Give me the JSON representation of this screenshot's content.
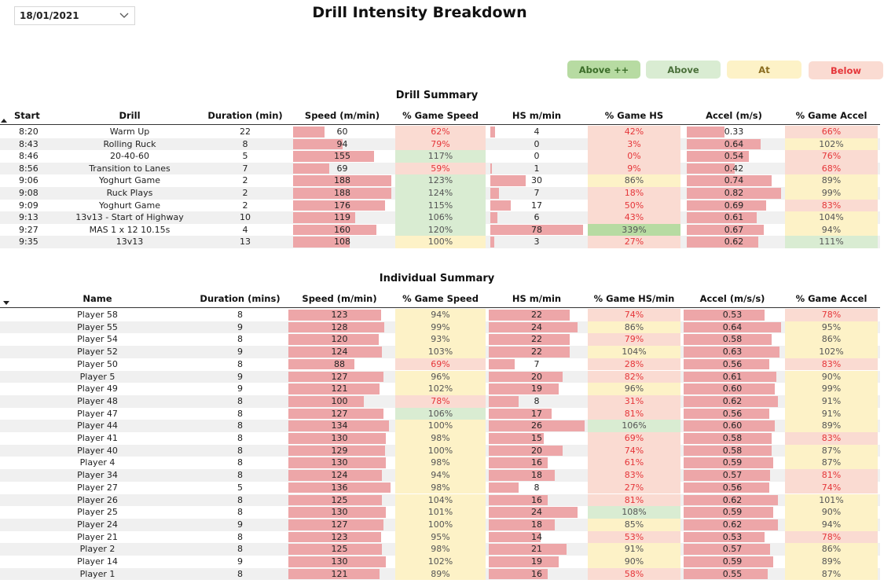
{
  "filter": {
    "date": "18/01/2021"
  },
  "title": "Drill Intensity Breakdown",
  "legend": [
    {
      "label": "Above ++",
      "bg": "#b7dba2",
      "color": "#3c6e2a"
    },
    {
      "label": "Above",
      "bg": "#d9ecd2",
      "color": "#4a6f3a"
    },
    {
      "label": "At",
      "bg": "#fdf2c7",
      "color": "#8b6d1f"
    },
    {
      "label": "Below",
      "bg": "#fadbd2",
      "color": "#e5363a"
    }
  ],
  "colors": {
    "bar": "#eda6a8",
    "band_below": "#fadbd2",
    "band_at": "#fdf2c7",
    "band_above": "#d9ecd2",
    "band_above_pp": "#b7dba2",
    "text_below": "#e5363a",
    "row_alt": "#f0f0f0"
  },
  "drill_summary": {
    "title": "Drill Summary",
    "headers": [
      "Start",
      "Drill",
      "Duration (min)",
      "Speed (m/min)",
      "% Game Speed",
      "HS m/min",
      "% Game HS",
      "Accel (m/s)",
      "% Game Accel"
    ],
    "rows": [
      [
        "8:20",
        "Warm Up",
        "22",
        "60",
        "62%",
        "4",
        "42%",
        "0.33",
        "66%"
      ],
      [
        "8:43",
        "Rolling Ruck",
        "8",
        "94",
        "79%",
        "0",
        "3%",
        "0.64",
        "102%"
      ],
      [
        "8:46",
        "20-40-60",
        "5",
        "155",
        "117%",
        "0",
        "0%",
        "0.54",
        "76%"
      ],
      [
        "8:56",
        "Transition to Lanes",
        "7",
        "69",
        "59%",
        "1",
        "9%",
        "0.42",
        "68%"
      ],
      [
        "9:06",
        "Yoghurt Game",
        "2",
        "188",
        "123%",
        "30",
        "86%",
        "0.74",
        "89%"
      ],
      [
        "9:08",
        "Ruck Plays",
        "2",
        "188",
        "124%",
        "7",
        "18%",
        "0.82",
        "99%"
      ],
      [
        "9:09",
        "Yoghurt Game",
        "2",
        "176",
        "115%",
        "17",
        "50%",
        "0.69",
        "83%"
      ],
      [
        "9:13",
        "13v13 - Start of Highway",
        "10",
        "119",
        "106%",
        "6",
        "43%",
        "0.61",
        "104%"
      ],
      [
        "9:27",
        "MAS 1 x 12 10.15s",
        "4",
        "160",
        "120%",
        "78",
        "339%",
        "0.67",
        "94%"
      ],
      [
        "9:35",
        "13v13",
        "13",
        "108",
        "100%",
        "3",
        "27%",
        "0.62",
        "111%"
      ]
    ]
  },
  "individual_summary": {
    "title": "Individual Summary",
    "headers": [
      "Name",
      "Duration (mins)",
      "Speed (m/min)",
      "% Game Speed",
      "HS m/min",
      "% Game HS/min",
      "Accel (m/s/s)",
      "% Game Accel"
    ],
    "rows": [
      [
        "Player 58",
        "8",
        "123",
        "94%",
        "22",
        "74%",
        "0.53",
        "78%"
      ],
      [
        "Player 55",
        "9",
        "128",
        "99%",
        "24",
        "86%",
        "0.64",
        "95%"
      ],
      [
        "Player 54",
        "8",
        "120",
        "93%",
        "22",
        "79%",
        "0.58",
        "86%"
      ],
      [
        "Player 52",
        "9",
        "124",
        "103%",
        "22",
        "104%",
        "0.63",
        "102%"
      ],
      [
        "Player 50",
        "8",
        "88",
        "69%",
        "7",
        "28%",
        "0.56",
        "83%"
      ],
      [
        "Player 5",
        "9",
        "127",
        "96%",
        "20",
        "82%",
        "0.61",
        "90%"
      ],
      [
        "Player 49",
        "9",
        "121",
        "102%",
        "19",
        "96%",
        "0.60",
        "99%"
      ],
      [
        "Player 48",
        "8",
        "100",
        "78%",
        "8",
        "31%",
        "0.62",
        "91%"
      ],
      [
        "Player 47",
        "8",
        "127",
        "106%",
        "17",
        "81%",
        "0.56",
        "91%"
      ],
      [
        "Player 44",
        "8",
        "134",
        "100%",
        "26",
        "106%",
        "0.60",
        "89%"
      ],
      [
        "Player 41",
        "8",
        "130",
        "98%",
        "15",
        "69%",
        "0.58",
        "83%"
      ],
      [
        "Player 40",
        "8",
        "129",
        "100%",
        "20",
        "74%",
        "0.58",
        "87%"
      ],
      [
        "Player 4",
        "8",
        "130",
        "98%",
        "16",
        "61%",
        "0.59",
        "87%"
      ],
      [
        "Player 34",
        "8",
        "124",
        "94%",
        "18",
        "83%",
        "0.57",
        "81%"
      ],
      [
        "Player 27",
        "5",
        "136",
        "98%",
        "8",
        "27%",
        "0.56",
        "74%"
      ],
      [
        "Player 26",
        "8",
        "125",
        "104%",
        "16",
        "81%",
        "0.62",
        "101%"
      ],
      [
        "Player 25",
        "8",
        "130",
        "101%",
        "24",
        "108%",
        "0.59",
        "90%"
      ],
      [
        "Player 24",
        "9",
        "127",
        "100%",
        "18",
        "85%",
        "0.62",
        "94%"
      ],
      [
        "Player 21",
        "8",
        "123",
        "95%",
        "14",
        "53%",
        "0.53",
        "78%"
      ],
      [
        "Player 2",
        "8",
        "125",
        "98%",
        "21",
        "91%",
        "0.57",
        "86%"
      ],
      [
        "Player 14",
        "9",
        "130",
        "102%",
        "19",
        "90%",
        "0.59",
        "89%"
      ],
      [
        "Player 1",
        "8",
        "121",
        "89%",
        "16",
        "58%",
        "0.55",
        "87%"
      ]
    ]
  }
}
